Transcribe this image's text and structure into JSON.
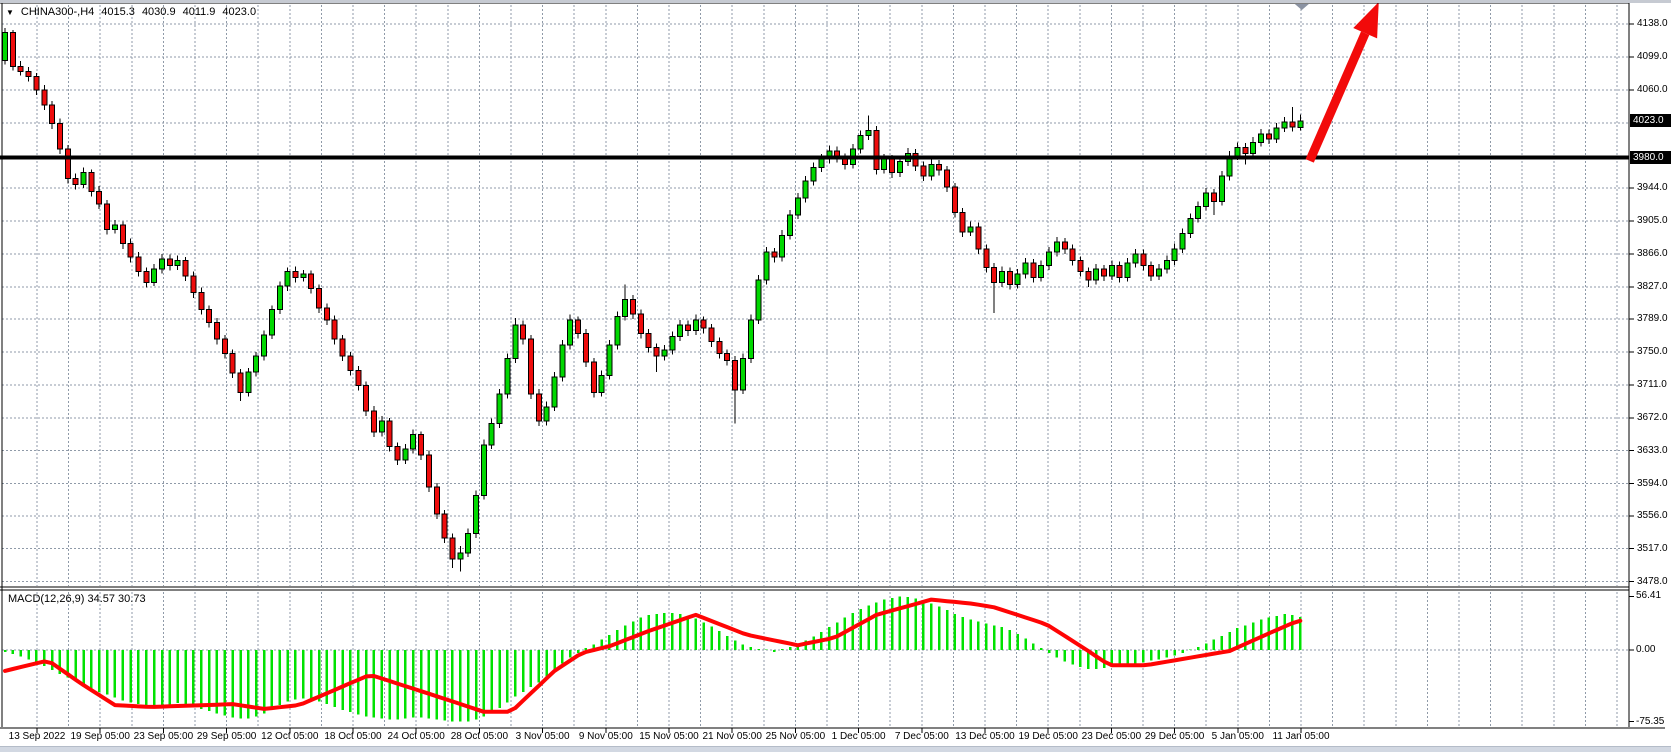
{
  "header": {
    "collapse_icon_glyph": "▼",
    "symbol_period": "CHINA300-,H4",
    "open": "4015.3",
    "high": "4030.9",
    "low": "4011.9",
    "close": "4023.0"
  },
  "macd_panel": {
    "label": "MACD(12,26,9) 34.57 30.73",
    "max_label": "56.41",
    "zero_label": "0.00",
    "min_label": "-75.35"
  },
  "colors": {
    "background": "#ffffff",
    "grid": "#8f9aa8",
    "candle_up": "#00d800",
    "candle_down": "#ee0c0c",
    "candle_border": "#000000",
    "macd_histogram": "#00e200",
    "macd_signal": "#ff0404",
    "hline": "#000000",
    "arrow": "#f20a0a",
    "axis_tag_bg": "#000000",
    "axis_tag_text": "#ffffff"
  },
  "chart_data": {
    "type": "candlestick",
    "title": "CHINA300- H4 with MACD(12,26,9)",
    "symbol": "CHINA300-",
    "timeframe": "H4",
    "ylim": [
      3478,
      4138
    ],
    "grid": true,
    "price_grid": [
      4138,
      4099,
      4060,
      4021,
      3982,
      3944,
      3905,
      3866,
      3827,
      3789,
      3750,
      3711,
      3672,
      3633,
      3594,
      3556,
      3517,
      3478
    ],
    "price_axis_labels": [
      "4138.0",
      "4099.0",
      "4060.0",
      "3944.0",
      "3905.0",
      "3866.0",
      "3827.0",
      "3789.0",
      "3750.0",
      "3711.0",
      "3672.0",
      "3633.0",
      "3594.0",
      "3556.0",
      "3517.0",
      "3478.0"
    ],
    "current_price_tag": "4023.0",
    "current_price": 4023.0,
    "hline_tag": "3980.0",
    "hline": 3980.0,
    "time_labels": [
      "13 Sep 2022",
      "19 Sep 05:00",
      "23 Sep 05:00",
      "29 Sep 05:00",
      "12 Oct 05:00",
      "18 Oct 05:00",
      "24 Oct 05:00",
      "28 Oct 05:00",
      "3 Nov 05:00",
      "9 Nov 05:00",
      "15 Nov 05:00",
      "21 Nov 05:00",
      "25 Nov 05:00",
      "1 Dec 05:00",
      "7 Dec 05:00",
      "13 Dec 05:00",
      "19 Dec 05:00",
      "23 Dec 05:00",
      "29 Dec 05:00",
      "5 Jan 05:00",
      "11 Jan 05:00"
    ],
    "candles": [
      [
        4095,
        4133,
        4090,
        4128
      ],
      [
        4128,
        4131,
        4083,
        4088
      ],
      [
        4088,
        4094,
        4077,
        4082
      ],
      [
        4082,
        4087,
        4070,
        4076
      ],
      [
        4076,
        4080,
        4054,
        4060
      ],
      [
        4060,
        4066,
        4036,
        4042
      ],
      [
        4042,
        4047,
        4014,
        4020
      ],
      [
        4020,
        4026,
        3984,
        3990
      ],
      [
        3990,
        3995,
        3949,
        3955
      ],
      [
        3955,
        3961,
        3942,
        3948
      ],
      [
        3948,
        3968,
        3944,
        3962
      ],
      [
        3962,
        3966,
        3934,
        3940
      ],
      [
        3940,
        3946,
        3919,
        3925
      ],
      [
        3925,
        3930,
        3889,
        3895
      ],
      [
        3895,
        3906,
        3890,
        3900
      ],
      [
        3900,
        3904,
        3872,
        3878
      ],
      [
        3878,
        3884,
        3856,
        3862
      ],
      [
        3862,
        3868,
        3839,
        3845
      ],
      [
        3845,
        3850,
        3826,
        3832
      ],
      [
        3832,
        3854,
        3828,
        3848
      ],
      [
        3848,
        3866,
        3843,
        3860
      ],
      [
        3860,
        3865,
        3846,
        3852
      ],
      [
        3852,
        3864,
        3847,
        3858
      ],
      [
        3858,
        3862,
        3834,
        3840
      ],
      [
        3840,
        3845,
        3814,
        3820
      ],
      [
        3820,
        3826,
        3794,
        3800
      ],
      [
        3800,
        3805,
        3779,
        3785
      ],
      [
        3785,
        3790,
        3759,
        3765
      ],
      [
        3765,
        3770,
        3742,
        3748
      ],
      [
        3748,
        3753,
        3719,
        3725
      ],
      [
        3725,
        3730,
        3692,
        3702
      ],
      [
        3702,
        3731,
        3697,
        3726
      ],
      [
        3726,
        3750,
        3721,
        3745
      ],
      [
        3745,
        3775,
        3740,
        3770
      ],
      [
        3770,
        3805,
        3765,
        3800
      ],
      [
        3800,
        3833,
        3795,
        3828
      ],
      [
        3828,
        3850,
        3822,
        3845
      ],
      [
        3845,
        3851,
        3832,
        3838
      ],
      [
        3838,
        3847,
        3833,
        3842
      ],
      [
        3842,
        3846,
        3819,
        3825
      ],
      [
        3825,
        3830,
        3796,
        3802
      ],
      [
        3802,
        3807,
        3782,
        3788
      ],
      [
        3788,
        3793,
        3759,
        3765
      ],
      [
        3765,
        3770,
        3739,
        3745
      ],
      [
        3745,
        3750,
        3722,
        3728
      ],
      [
        3728,
        3733,
        3704,
        3710
      ],
      [
        3710,
        3715,
        3674,
        3680
      ],
      [
        3680,
        3686,
        3649,
        3655
      ],
      [
        3655,
        3674,
        3650,
        3668
      ],
      [
        3668,
        3672,
        3632,
        3638
      ],
      [
        3638,
        3643,
        3616,
        3622
      ],
      [
        3622,
        3641,
        3617,
        3635
      ],
      [
        3635,
        3658,
        3630,
        3652
      ],
      [
        3652,
        3656,
        3622,
        3628
      ],
      [
        3628,
        3633,
        3584,
        3590
      ],
      [
        3590,
        3595,
        3552,
        3558
      ],
      [
        3558,
        3563,
        3524,
        3530
      ],
      [
        3530,
        3535,
        3494,
        3505
      ],
      [
        3505,
        3520,
        3490,
        3512
      ],
      [
        3512,
        3541,
        3507,
        3535
      ],
      [
        3535,
        3586,
        3530,
        3580
      ],
      [
        3580,
        3646,
        3575,
        3640
      ],
      [
        3640,
        3671,
        3635,
        3665
      ],
      [
        3665,
        3706,
        3660,
        3700
      ],
      [
        3700,
        3748,
        3695,
        3742
      ],
      [
        3742,
        3790,
        3737,
        3782
      ],
      [
        3782,
        3787,
        3759,
        3765
      ],
      [
        3765,
        3770,
        3694,
        3700
      ],
      [
        3700,
        3706,
        3662,
        3668
      ],
      [
        3668,
        3691,
        3663,
        3685
      ],
      [
        3685,
        3726,
        3680,
        3720
      ],
      [
        3720,
        3764,
        3715,
        3758
      ],
      [
        3758,
        3794,
        3753,
        3788
      ],
      [
        3788,
        3792,
        3766,
        3772
      ],
      [
        3772,
        3777,
        3732,
        3738
      ],
      [
        3738,
        3743,
        3696,
        3702
      ],
      [
        3702,
        3728,
        3697,
        3722
      ],
      [
        3722,
        3764,
        3717,
        3758
      ],
      [
        3758,
        3798,
        3753,
        3792
      ],
      [
        3792,
        3830,
        3787,
        3812
      ],
      [
        3812,
        3817,
        3789,
        3795
      ],
      [
        3795,
        3800,
        3766,
        3772
      ],
      [
        3772,
        3777,
        3749,
        3755
      ],
      [
        3755,
        3760,
        3726,
        3745
      ],
      [
        3745,
        3758,
        3740,
        3752
      ],
      [
        3752,
        3774,
        3747,
        3768
      ],
      [
        3768,
        3788,
        3763,
        3782
      ],
      [
        3782,
        3787,
        3769,
        3775
      ],
      [
        3775,
        3794,
        3770,
        3788
      ],
      [
        3788,
        3792,
        3772,
        3778
      ],
      [
        3778,
        3783,
        3756,
        3762
      ],
      [
        3762,
        3767,
        3742,
        3748
      ],
      [
        3748,
        3753,
        3734,
        3740
      ],
      [
        3740,
        3745,
        3665,
        3705
      ],
      [
        3705,
        3748,
        3700,
        3742
      ],
      [
        3742,
        3794,
        3737,
        3788
      ],
      [
        3788,
        3841,
        3783,
        3835
      ],
      [
        3835,
        3874,
        3830,
        3868
      ],
      [
        3868,
        3873,
        3856,
        3862
      ],
      [
        3862,
        3894,
        3857,
        3888
      ],
      [
        3888,
        3918,
        3883,
        3912
      ],
      [
        3912,
        3938,
        3907,
        3932
      ],
      [
        3932,
        3958,
        3927,
        3952
      ],
      [
        3952,
        3974,
        3947,
        3968
      ],
      [
        3968,
        3984,
        3963,
        3978
      ],
      [
        3978,
        3994,
        3973,
        3988
      ],
      [
        3988,
        3993,
        3974,
        3980
      ],
      [
        3980,
        3985,
        3966,
        3972
      ],
      [
        3972,
        3996,
        3967,
        3990
      ],
      [
        3990,
        4012,
        3985,
        4006
      ],
      [
        4006,
        4030,
        4001,
        4012
      ],
      [
        4012,
        4017,
        3960,
        3966
      ],
      [
        3966,
        3984,
        3961,
        3978
      ],
      [
        3978,
        3983,
        3956,
        3962
      ],
      [
        3962,
        3981,
        3957,
        3975
      ],
      [
        3975,
        3991,
        3970,
        3985
      ],
      [
        3985,
        3990,
        3964,
        3970
      ],
      [
        3970,
        3975,
        3952,
        3958
      ],
      [
        3958,
        3978,
        3953,
        3972
      ],
      [
        3972,
        3977,
        3959,
        3965
      ],
      [
        3965,
        3970,
        3939,
        3945
      ],
      [
        3945,
        3950,
        3909,
        3915
      ],
      [
        3915,
        3920,
        3886,
        3892
      ],
      [
        3892,
        3904,
        3887,
        3898
      ],
      [
        3898,
        3903,
        3866,
        3872
      ],
      [
        3872,
        3877,
        3844,
        3850
      ],
      [
        3850,
        3855,
        3796,
        3832
      ],
      [
        3832,
        3851,
        3827,
        3845
      ],
      [
        3845,
        3850,
        3824,
        3830
      ],
      [
        3830,
        3848,
        3825,
        3842
      ],
      [
        3842,
        3861,
        3837,
        3855
      ],
      [
        3855,
        3860,
        3832,
        3838
      ],
      [
        3838,
        3858,
        3833,
        3852
      ],
      [
        3852,
        3874,
        3847,
        3868
      ],
      [
        3868,
        3886,
        3863,
        3880
      ],
      [
        3880,
        3885,
        3866,
        3872
      ],
      [
        3872,
        3877,
        3852,
        3858
      ],
      [
        3858,
        3863,
        3839,
        3845
      ],
      [
        3845,
        3850,
        3827,
        3835
      ],
      [
        3835,
        3854,
        3830,
        3848
      ],
      [
        3848,
        3853,
        3834,
        3840
      ],
      [
        3840,
        3858,
        3835,
        3852
      ],
      [
        3852,
        3857,
        3832,
        3838
      ],
      [
        3838,
        3861,
        3833,
        3855
      ],
      [
        3855,
        3872,
        3850,
        3866
      ],
      [
        3866,
        3871,
        3846,
        3852
      ],
      [
        3852,
        3857,
        3834,
        3840
      ],
      [
        3840,
        3854,
        3835,
        3848
      ],
      [
        3848,
        3864,
        3843,
        3858
      ],
      [
        3858,
        3878,
        3853,
        3872
      ],
      [
        3872,
        3896,
        3867,
        3890
      ],
      [
        3890,
        3914,
        3885,
        3908
      ],
      [
        3908,
        3928,
        3903,
        3922
      ],
      [
        3922,
        3944,
        3917,
        3938
      ],
      [
        3938,
        3943,
        3912,
        3928
      ],
      [
        3928,
        3964,
        3923,
        3958
      ],
      [
        3958,
        3988,
        3953,
        3982
      ],
      [
        3982,
        3998,
        3977,
        3992
      ],
      [
        3992,
        3997,
        3972,
        3985
      ],
      [
        3985,
        4004,
        3980,
        3998
      ],
      [
        3998,
        4014,
        3993,
        4008
      ],
      [
        4008,
        4013,
        3996,
        4002
      ],
      [
        4002,
        4021,
        3997,
        4015
      ],
      [
        4015,
        4028,
        4010,
        4022
      ],
      [
        4022,
        4040,
        4011,
        4016
      ],
      [
        4015.3,
        4030.9,
        4011.9,
        4023.0
      ]
    ],
    "macd_histogram": [
      -2,
      -4,
      -7,
      -10,
      -14,
      -17,
      -21,
      -25,
      -29,
      -33,
      -37,
      -41,
      -44,
      -47,
      -50,
      -53,
      -55,
      -57,
      -58,
      -59,
      -59,
      -58,
      -56,
      -57,
      -59,
      -62,
      -64,
      -67,
      -69,
      -71,
      -72,
      -72,
      -70,
      -67,
      -63,
      -58,
      -54,
      -52,
      -51,
      -52,
      -54,
      -57,
      -60,
      -63,
      -65,
      -68,
      -70,
      -71,
      -72,
      -73,
      -73,
      -72,
      -71,
      -71,
      -72,
      -73,
      -74,
      -75,
      -75.4,
      -75,
      -73,
      -70,
      -66,
      -61,
      -55,
      -49,
      -44,
      -39,
      -34,
      -28,
      -21,
      -14,
      -8,
      -3,
      2,
      6,
      11,
      16,
      21,
      26,
      30,
      34,
      37,
      38,
      39,
      39,
      38,
      36,
      33,
      29,
      25,
      20,
      15,
      10,
      6,
      3,
      1,
      0.5,
      -2,
      1,
      3,
      6,
      10,
      14,
      19,
      24,
      29,
      34,
      39,
      43,
      47,
      50,
      53,
      55,
      56.4,
      56,
      54,
      52,
      49,
      46,
      42,
      38,
      35,
      32,
      30,
      28,
      26,
      24,
      21,
      17,
      12,
      7,
      2,
      -3,
      -8,
      -12,
      -15,
      -18,
      -20,
      -20,
      -19,
      -18,
      -16,
      -15,
      -14,
      -13,
      -11,
      -10,
      -8,
      -6,
      -3,
      0.5,
      3,
      7,
      11,
      15,
      19,
      23,
      26,
      29,
      32,
      34,
      36,
      38,
      37,
      34.57
    ],
    "macd_signal_waypoints": [
      [
        0,
        -22
      ],
      [
        5.5,
        -11
      ],
      [
        10,
        -37
      ],
      [
        14,
        -58
      ],
      [
        18.5,
        -60
      ],
      [
        29,
        -57
      ],
      [
        33,
        -62
      ],
      [
        37.5,
        -58
      ],
      [
        46.5,
        -26
      ],
      [
        54,
        -46
      ],
      [
        61,
        -65
      ],
      [
        64.5,
        -65
      ],
      [
        70,
        -22
      ],
      [
        73.5,
        -3
      ],
      [
        77,
        4
      ],
      [
        82,
        20
      ],
      [
        88,
        37
      ],
      [
        94.5,
        16
      ],
      [
        101,
        5
      ],
      [
        105.7,
        13
      ],
      [
        111,
        37
      ],
      [
        118,
        53
      ],
      [
        123,
        49
      ],
      [
        126,
        45
      ],
      [
        132.7,
        27
      ],
      [
        137.8,
        0
      ],
      [
        140.7,
        -16
      ],
      [
        145.4,
        -16
      ],
      [
        156,
        -1
      ],
      [
        160.6,
        16
      ],
      [
        164.7,
        30.73
      ]
    ],
    "macd_current": 34.57,
    "macd_signal_current": 30.73,
    "annotation_arrow": {
      "start_index": 166.2,
      "start_price": 3976,
      "end_index": 175.0,
      "end_price": 4164
    },
    "top_marker_index": 165.2
  }
}
